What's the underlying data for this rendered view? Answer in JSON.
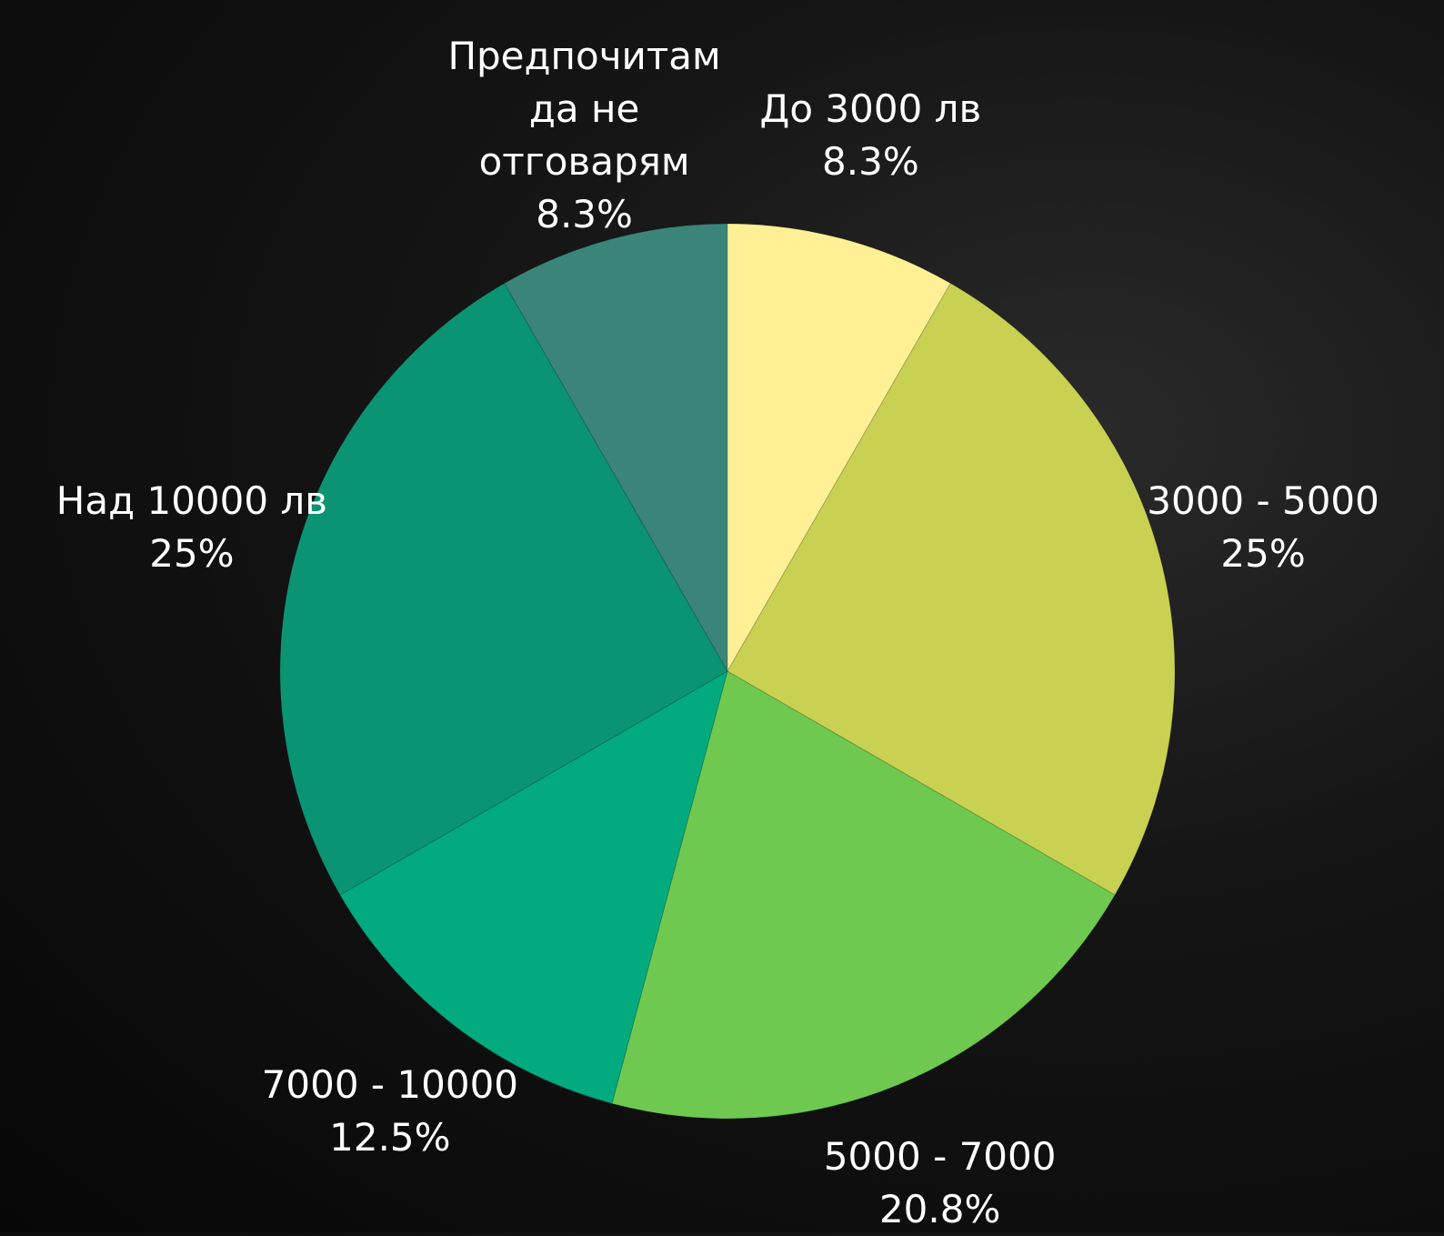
{
  "chart_data": {
    "type": "pie",
    "categories": [
      "До 3000 лв",
      "3000 - 5000",
      "5000 - 7000",
      "7000 - 10000",
      "Над 10000 лв",
      "Предпочитам да не отговарям"
    ],
    "values": [
      8.3,
      25,
      20.8,
      12.5,
      25,
      8.3
    ],
    "value_labels": [
      "8.3%",
      "25%",
      "20.8%",
      "12.5%",
      "25%",
      "8.3%"
    ],
    "colors": [
      "#fff096",
      "#c8d151",
      "#6fc850",
      "#02aa7d",
      "#0b9472",
      "#3a8577"
    ]
  }
}
